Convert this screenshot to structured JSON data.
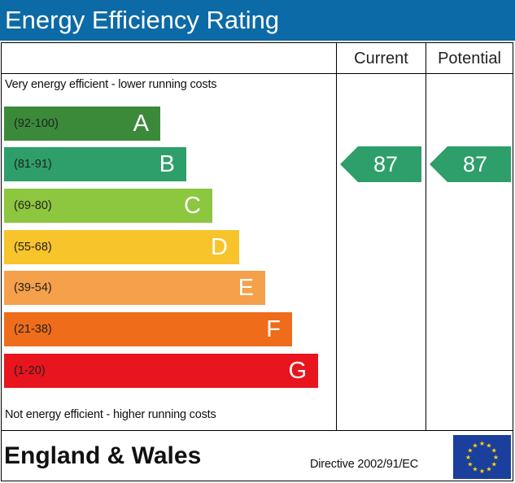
{
  "header": {
    "title": "Energy Efficiency Rating"
  },
  "columns": {
    "current": "Current",
    "potential": "Potential"
  },
  "notes": {
    "top": "Very energy efficient - lower running costs",
    "bottom": "Not energy efficient - higher running costs"
  },
  "bands": [
    {
      "range": "(92-100)",
      "letter": "A",
      "color": "#3a8a3a"
    },
    {
      "range": "(81-91)",
      "letter": "B",
      "color": "#2e9e6a"
    },
    {
      "range": "(69-80)",
      "letter": "C",
      "color": "#8dc63f"
    },
    {
      "range": "(55-68)",
      "letter": "D",
      "color": "#f7c42b"
    },
    {
      "range": "(39-54)",
      "letter": "E",
      "color": "#f5a04a"
    },
    {
      "range": "(21-38)",
      "letter": "F",
      "color": "#ef6c1a"
    },
    {
      "range": "(1-20)",
      "letter": "G",
      "color": "#e8141e"
    }
  ],
  "ratings": {
    "current": "87",
    "potential": "87",
    "band": "B",
    "arrow_color": "#2e9e6a"
  },
  "footer": {
    "region": "England & Wales",
    "directive": "Directive 2002/91/EC",
    "flag_icon": "eu-flag-icon"
  }
}
